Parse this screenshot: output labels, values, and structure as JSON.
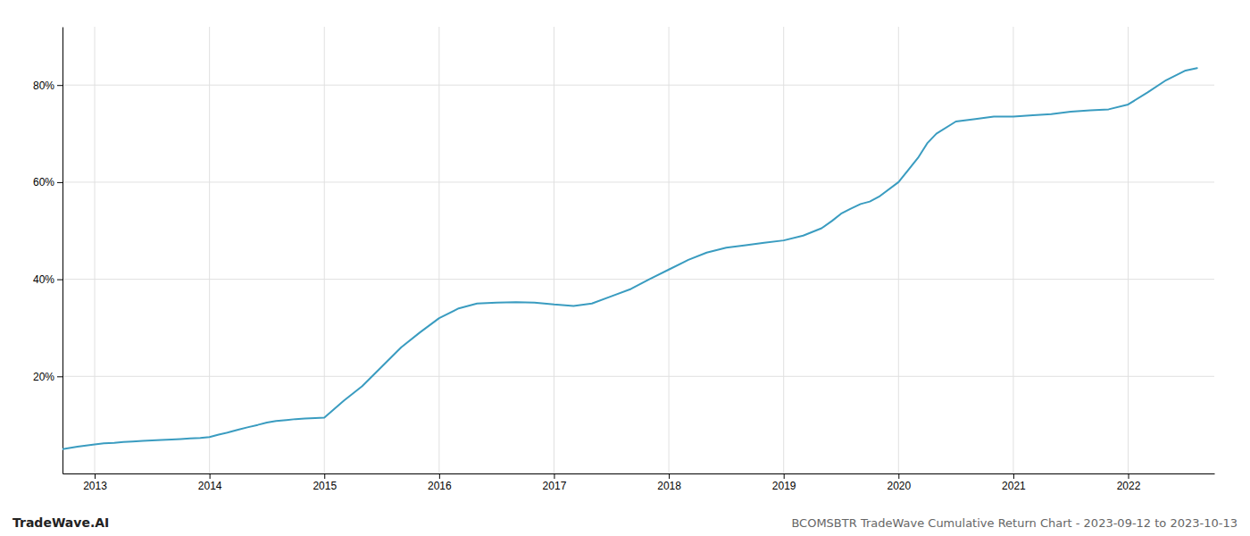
{
  "chart_data": {
    "type": "line",
    "title": "BCOMSBTR TradeWave Cumulative Return Chart - 2023-09-12 to 2023-10-13",
    "annotations": [
      "TradeWave.AI"
    ],
    "color": "#3a9cc0",
    "grid": true,
    "x": [
      2012.72,
      2012.85,
      2013.0,
      2013.08,
      2013.17,
      2013.25,
      2013.33,
      2013.42,
      2013.5,
      2013.58,
      2013.67,
      2013.75,
      2013.83,
      2013.92,
      2014.0,
      2014.08,
      2014.17,
      2014.25,
      2014.33,
      2014.42,
      2014.5,
      2014.58,
      2014.67,
      2014.75,
      2014.83,
      2014.92,
      2015.0,
      2015.17,
      2015.33,
      2015.5,
      2015.67,
      2015.83,
      2016.0,
      2016.17,
      2016.33,
      2016.5,
      2016.67,
      2016.83,
      2017.0,
      2017.17,
      2017.33,
      2017.5,
      2017.67,
      2017.83,
      2018.0,
      2018.17,
      2018.33,
      2018.5,
      2018.67,
      2018.83,
      2019.0,
      2019.17,
      2019.33,
      2019.42,
      2019.5,
      2019.58,
      2019.67,
      2019.75,
      2019.83,
      2020.0,
      2020.17,
      2020.25,
      2020.33,
      2020.5,
      2020.67,
      2020.83,
      2021.0,
      2021.17,
      2021.33,
      2021.5,
      2021.67,
      2021.83,
      2022.0,
      2022.17,
      2022.33,
      2022.5,
      2022.6
    ],
    "values": [
      5.0,
      5.5,
      6.0,
      6.2,
      6.3,
      6.5,
      6.6,
      6.7,
      6.8,
      6.9,
      7.0,
      7.1,
      7.2,
      7.3,
      7.5,
      8.0,
      8.5,
      9.0,
      9.5,
      10.0,
      10.5,
      10.8,
      11.0,
      11.2,
      11.3,
      11.4,
      11.5,
      15.0,
      18.0,
      22.0,
      26.0,
      29.0,
      32.0,
      34.0,
      35.0,
      35.2,
      35.3,
      35.2,
      34.8,
      34.5,
      35.0,
      36.5,
      38.0,
      40.0,
      42.0,
      44.0,
      45.5,
      46.5,
      47.0,
      47.5,
      48.0,
      49.0,
      50.5,
      52.0,
      53.5,
      54.5,
      55.5,
      56.0,
      57.0,
      60.0,
      65.0,
      68.0,
      70.0,
      72.5,
      73.0,
      73.5,
      73.5,
      73.8,
      74.0,
      74.5,
      74.8,
      75.0,
      76.0,
      78.5,
      81.0,
      83.0,
      83.5
    ],
    "xlim": [
      2012.72,
      2022.75
    ],
    "xticks": [
      2013,
      2014,
      2015,
      2016,
      2017,
      2018,
      2019,
      2020,
      2021,
      2022
    ],
    "ylim": [
      0,
      92
    ],
    "yticks": [
      {
        "value": 20,
        "label": "20%"
      },
      {
        "value": 40,
        "label": "40%"
      },
      {
        "value": 60,
        "label": "60%"
      },
      {
        "value": 80,
        "label": "80%"
      }
    ]
  }
}
